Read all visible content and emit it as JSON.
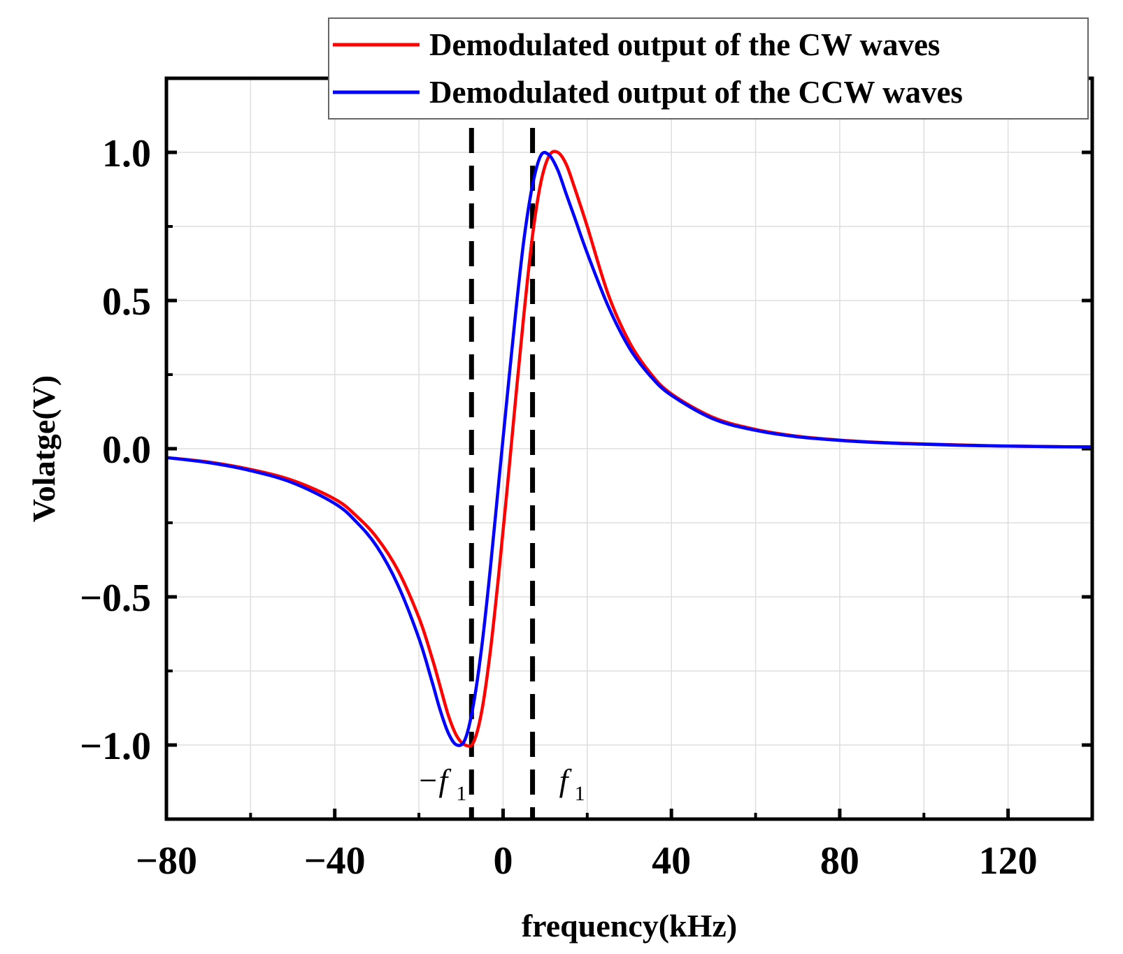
{
  "chart_data": {
    "type": "line",
    "title": "",
    "xlabel": "frequency(kHz)",
    "ylabel": "Volatge(V)",
    "xlim": [
      -80,
      140
    ],
    "ylim": [
      -1.25,
      1.25
    ],
    "xticks": [
      -80,
      -40,
      0,
      40,
      80,
      120
    ],
    "xtick_labels": [
      "−80",
      "−40",
      "0",
      "40",
      "80",
      "120"
    ],
    "yticks": [
      -1.0,
      -0.5,
      0.0,
      0.5,
      1.0
    ],
    "ytick_labels": [
      "−1.0",
      "−0.5",
      "0.0",
      "0.5",
      "1.0"
    ],
    "grid": true,
    "legend_position": "top-right",
    "series": [
      {
        "name": "Demodulated output of the CW waves",
        "color": "#ff0000",
        "x": [
          -80,
          -70,
          -60,
          -50,
          -40,
          -35,
          -30,
          -25,
          -20,
          -17,
          -15,
          -13,
          -11,
          -9,
          -7,
          -5,
          -3,
          -1,
          1,
          3,
          5,
          7,
          9,
          11,
          13,
          15,
          17,
          20,
          25,
          30,
          35,
          40,
          50,
          60,
          70,
          80,
          90,
          100,
          110,
          120,
          130,
          140
        ],
        "y": [
          -0.03,
          -0.045,
          -0.07,
          -0.107,
          -0.17,
          -0.225,
          -0.3,
          -0.41,
          -0.57,
          -0.7,
          -0.8,
          -0.9,
          -0.97,
          -1.0,
          -0.99,
          -0.88,
          -0.68,
          -0.42,
          -0.13,
          0.17,
          0.46,
          0.72,
          0.9,
          0.99,
          1.0,
          0.96,
          0.88,
          0.75,
          0.52,
          0.36,
          0.255,
          0.185,
          0.105,
          0.065,
          0.042,
          0.029,
          0.021,
          0.016,
          0.012,
          0.009,
          0.007,
          0.006
        ]
      },
      {
        "name": "Demodulated output of the CCW waves",
        "color": "#0000ff",
        "x": [
          -80,
          -70,
          -60,
          -50,
          -40,
          -35,
          -30,
          -25,
          -20,
          -17,
          -15,
          -13,
          -11,
          -9,
          -7,
          -5,
          -3,
          -1,
          1,
          3,
          5,
          7,
          9,
          11,
          13,
          15,
          17,
          20,
          25,
          30,
          35,
          40,
          50,
          60,
          70,
          80,
          90,
          100,
          110,
          120,
          130,
          140
        ],
        "y": [
          -0.03,
          -0.047,
          -0.074,
          -0.115,
          -0.185,
          -0.245,
          -0.33,
          -0.46,
          -0.64,
          -0.78,
          -0.88,
          -0.96,
          -1.0,
          -0.98,
          -0.86,
          -0.66,
          -0.4,
          -0.11,
          0.18,
          0.46,
          0.71,
          0.89,
          0.99,
          0.99,
          0.94,
          0.86,
          0.78,
          0.66,
          0.48,
          0.34,
          0.245,
          0.18,
          0.1,
          0.062,
          0.04,
          0.028,
          0.02,
          0.015,
          0.011,
          0.009,
          0.007,
          0.006
        ]
      }
    ],
    "annotations": [
      {
        "type": "vline",
        "x": -7.5,
        "style": "dashed",
        "label_main": "−f",
        "label_sub": "1"
      },
      {
        "type": "vline",
        "x": 7,
        "style": "dashed",
        "label_main": "f",
        "label_sub": "1"
      }
    ]
  }
}
